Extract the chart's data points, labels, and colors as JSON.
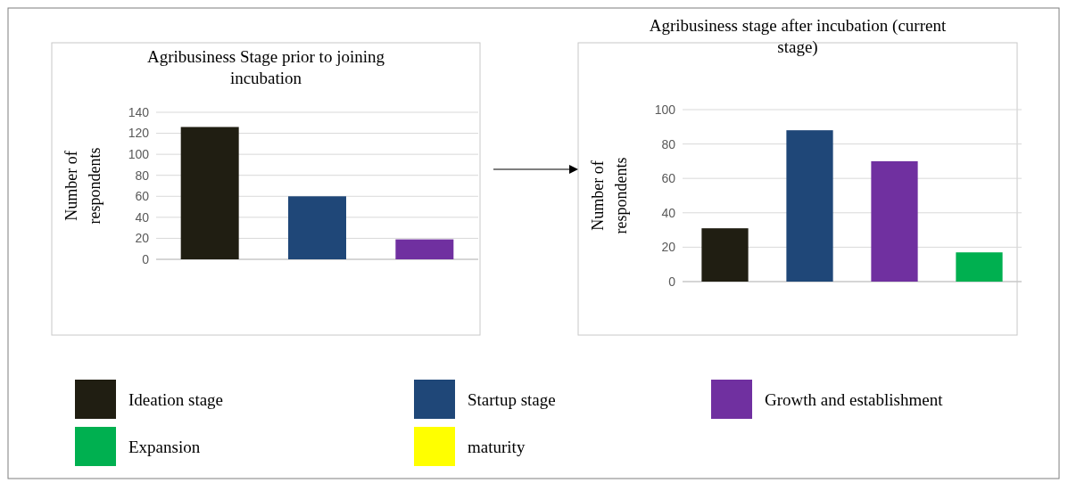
{
  "chart_data": [
    {
      "type": "bar",
      "title": "Agribusiness Stage prior to joining incubation",
      "ylabel": "Number of respondents",
      "categories": [
        null,
        null,
        null
      ],
      "values": [
        126,
        60,
        19
      ],
      "colors": [
        "#201e12",
        "#1f4778",
        "#7030a0"
      ],
      "ylim": [
        0,
        140
      ],
      "yticks": [
        0,
        20,
        40,
        60,
        80,
        100,
        120,
        140
      ],
      "grid": "y"
    },
    {
      "type": "bar",
      "title": "Agribusiness stage after incubation (current stage)",
      "ylabel": "Number of respondents",
      "categories": [
        null,
        null,
        null,
        null
      ],
      "legend": "bottom",
      "ylim": [
        0,
        100
      ],
      "yticks": [
        0,
        20,
        40,
        60,
        80,
        100
      ],
      "grid": "y",
      "series": [
        {
          "name": "Ideation stage",
          "color": "#201e12",
          "values": [
            31,
            null,
            null,
            null
          ]
        },
        {
          "name": "Startup stage",
          "color": "#1f4778",
          "values": [
            null,
            88,
            null,
            null
          ]
        },
        {
          "name": "Growth and establishment",
          "color": "#7030a0",
          "values": [
            null,
            null,
            70,
            null
          ]
        },
        {
          "name": "Expansion",
          "color": "#00b050",
          "values": [
            null,
            null,
            null,
            17
          ]
        },
        {
          "name": "maturity",
          "color": "#ffff00",
          "values": [
            null,
            null,
            null,
            null
          ]
        }
      ]
    }
  ]
}
